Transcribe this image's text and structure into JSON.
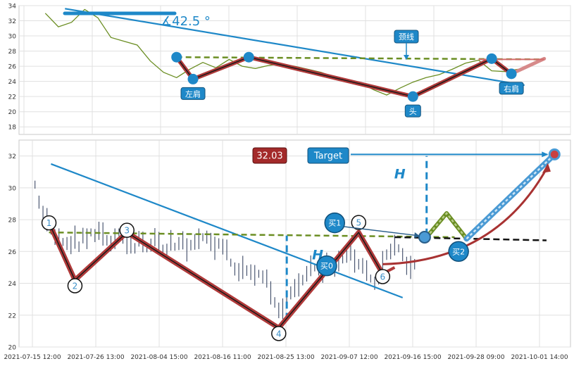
{
  "chart_data": [
    {
      "type": "line",
      "panel": "top",
      "ylim": [
        17,
        34
      ],
      "yticks": [
        18,
        20,
        22,
        24,
        26,
        28,
        30,
        32,
        34
      ],
      "grid": true,
      "colors": {
        "price": "#6b8e23",
        "neckline": "#6b8e23",
        "trend": "#1e88c8",
        "pattern": "#b03a3a",
        "marker": "#1e88c8"
      },
      "price_series": {
        "name": "",
        "x": [
          0,
          2,
          4,
          6,
          8,
          10,
          12,
          14,
          16,
          18,
          20,
          22,
          24,
          26,
          28,
          30,
          32,
          34,
          36,
          38,
          40,
          42,
          44,
          46,
          48,
          50,
          52,
          54,
          56,
          58,
          60,
          62,
          64,
          66,
          68,
          70,
          72
        ],
        "y": [
          33.0,
          31.2,
          31.8,
          33.5,
          32.4,
          29.8,
          29.3,
          28.8,
          26.7,
          25.2,
          24.5,
          25.6,
          26.5,
          25.8,
          26.9,
          26.0,
          25.7,
          26.1,
          26.3,
          26.0,
          25.6,
          25.2,
          24.6,
          24.1,
          23.8,
          22.9,
          22.2,
          23.1,
          23.9,
          24.5,
          24.9,
          25.6,
          26.4,
          26.8,
          25.4,
          25.3,
          25.6
        ]
      },
      "pattern_points": [
        {
          "x": 20,
          "y": 27.2,
          "label": ""
        },
        {
          "x": 22.5,
          "y": 24.3,
          "label": "左肩"
        },
        {
          "x": 31,
          "y": 27.2,
          "label": ""
        },
        {
          "x": 56,
          "y": 22.0,
          "label": "头"
        },
        {
          "x": 68,
          "y": 27.0,
          "label": ""
        },
        {
          "x": 71,
          "y": 25.0,
          "label": "右肩"
        }
      ],
      "projection": {
        "x": [
          71,
          76
        ],
        "y": [
          25.0,
          27.0
        ]
      },
      "neckline": {
        "x": [
          20,
          76
        ],
        "y": [
          27.2,
          26.9
        ],
        "label": "颈线"
      },
      "trendline": {
        "x": [
          3,
          73
        ],
        "y": [
          33.6,
          23.5
        ]
      },
      "angle_label": "∡42.5 °"
    },
    {
      "type": "line",
      "panel": "bottom",
      "ylim": [
        20,
        33
      ],
      "yticks": [
        20,
        22,
        24,
        26,
        28,
        30,
        32
      ],
      "xtick_labels": [
        "2021-07-15 12:00",
        "2021-07-26 13:00",
        "2021-08-04 15:00",
        "2021-08-16 11:00",
        "2021-08-25 13:00",
        "2021-09-07 12:00",
        "2021-09-16 15:00",
        "2021-09-28 09:00",
        "2021-10-01 14:00"
      ],
      "grid": true,
      "colors": {
        "bars": "#3d4a66",
        "neckline": "#6b8e23",
        "trend": "#1e88c8",
        "pattern": "#b03a3a",
        "target": "#1e88c8",
        "value_box": "#a32a2a"
      },
      "price_bars": {
        "x": [
          0,
          1,
          2,
          3,
          4,
          5,
          6,
          7,
          8,
          9,
          10,
          11,
          12,
          13,
          14,
          15,
          16,
          17,
          18,
          19,
          20,
          21,
          22,
          23,
          24,
          25,
          26,
          27,
          28,
          29,
          30,
          31,
          32,
          33,
          34,
          35,
          36,
          37,
          38,
          39,
          40,
          41,
          42,
          43,
          44,
          45,
          46,
          47,
          48,
          49,
          50,
          51,
          52,
          53,
          54,
          55,
          56,
          57,
          58,
          59,
          60,
          61,
          62,
          63,
          64,
          65,
          66,
          67,
          68,
          69,
          70,
          71,
          72,
          73,
          74,
          75,
          76,
          77,
          78,
          79,
          80,
          81,
          82,
          83,
          84,
          85,
          86,
          87,
          88,
          89,
          90,
          91,
          92,
          93,
          94,
          95
        ],
        "y": [
          30.2,
          29.1,
          28.3,
          28.0,
          27.4,
          26.9,
          26.8,
          26.6,
          26.5,
          26.4,
          26.9,
          26.3,
          27.0,
          26.8,
          27.2,
          27.0,
          27.3,
          27.1,
          26.7,
          26.5,
          26.8,
          27.2,
          26.9,
          26.4,
          26.6,
          26.2,
          26.8,
          26.6,
          26.2,
          26.4,
          26.9,
          26.5,
          26.1,
          26.0,
          26.7,
          26.3,
          26.5,
          26.7,
          26.1,
          26.4,
          26.6,
          26.8,
          26.9,
          26.9,
          26.6,
          26.2,
          26.5,
          26.3,
          26.1,
          25.3,
          24.9,
          24.7,
          25.0,
          24.8,
          24.7,
          24.5,
          24.6,
          24.4,
          24.3,
          23.4,
          22.8,
          22.3,
          22.4,
          23.0,
          23.4,
          23.7,
          23.9,
          24.2,
          24.6,
          25.1,
          25.0,
          24.9,
          24.6,
          25.2,
          25.3,
          24.9,
          25.4,
          25.5,
          25.7,
          26.0,
          25.4,
          25.2,
          25.1,
          24.8,
          24.3,
          24.0,
          24.5,
          25.3,
          25.8,
          26.0,
          26.4,
          26.2,
          25.8,
          25.1,
          25.0,
          25.2
        ]
      },
      "pattern_points": [
        {
          "x": 3.5,
          "y": 27.8,
          "label": "1"
        },
        {
          "x": 10,
          "y": 24.2,
          "label": "2"
        },
        {
          "x": 23,
          "y": 27.2,
          "label": "3"
        },
        {
          "x": 61,
          "y": 21.2,
          "label": "4"
        },
        {
          "x": 81,
          "y": 27.2,
          "label": "5"
        },
        {
          "x": 87,
          "y": 24.6,
          "label": "6"
        }
      ],
      "neckline": {
        "x": [
          3.5,
          105
        ],
        "y": [
          27.2,
          26.9
        ]
      },
      "neckline_ext": {
        "x": [
          90,
          128
        ],
        "y": [
          26.9,
          26.7
        ]
      },
      "trendline": {
        "x": [
          4,
          92
        ],
        "y": [
          31.5,
          23.1
        ]
      },
      "height_markers": [
        {
          "x": 63,
          "y1": 21.7,
          "y2": 27.0,
          "label": "H"
        },
        {
          "x": 98,
          "y1": 27.0,
          "y2": 32.0,
          "label": "H"
        }
      ],
      "projection": {
        "x": [
          98,
          103,
          108,
          130
        ],
        "y": [
          26.9,
          28.4,
          26.8,
          32.1
        ]
      },
      "curve": {
        "from": [
          87,
          25.2
        ],
        "ctrl": [
          115,
          25.4
        ],
        "to": [
          128,
          31.2
        ]
      },
      "target": {
        "x": 130,
        "y": 32.1,
        "label": "Target",
        "line_start_x": 79
      },
      "value_label": "32.03",
      "buy_points": [
        {
          "x": 73,
          "y": 25.1,
          "label": "买0"
        },
        {
          "x": 75,
          "y": 27.8,
          "label": "买1"
        },
        {
          "x": 106,
          "y": 26.0,
          "label": "买2"
        }
      ],
      "buy1_arrow_to": {
        "x": 97.5,
        "y": 26.9
      },
      "xlim": [
        -4,
        134
      ]
    }
  ]
}
